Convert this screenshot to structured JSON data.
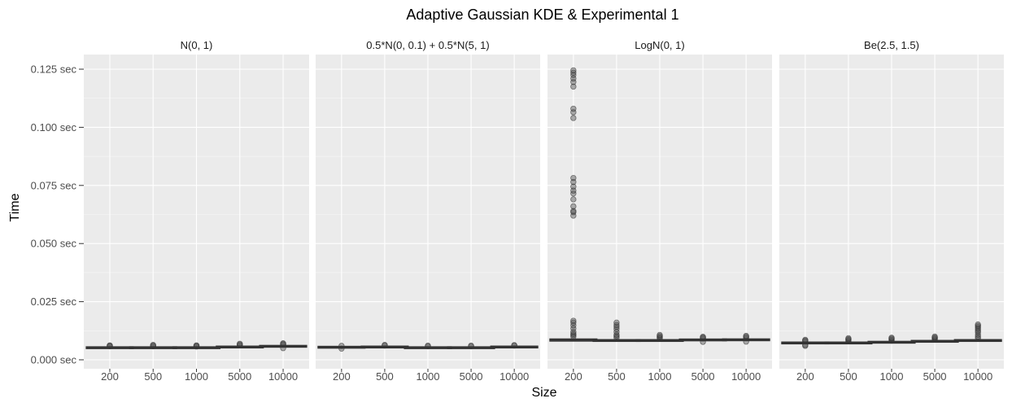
{
  "chart_data": {
    "type": "box",
    "title": "Adaptive Gaussian KDE & Experimental 1",
    "xlabel": "Size",
    "ylabel": "Time",
    "categories": [
      "200",
      "500",
      "1000",
      "5000",
      "10000"
    ],
    "ylim": [
      0,
      0.13
    ],
    "yticks": [
      0,
      0.025,
      0.05,
      0.075,
      0.1,
      0.125
    ],
    "ytick_labels": [
      "0.000 sec",
      "0.025 sec",
      "0.050 sec",
      "0.075 sec",
      "0.100 sec",
      "0.125 sec"
    ],
    "grid": true,
    "facets": [
      {
        "label": "N(0, 1)",
        "boxes": [
          {
            "category": "200",
            "q1": 0.005,
            "median": 0.0052,
            "q3": 0.0054,
            "outliers": [
              0.0058,
              0.006,
              0.0062
            ]
          },
          {
            "category": "500",
            "q1": 0.005,
            "median": 0.0052,
            "q3": 0.0054,
            "outliers": [
              0.0058,
              0.0061,
              0.0064
            ]
          },
          {
            "category": "1000",
            "q1": 0.005,
            "median": 0.0052,
            "q3": 0.0054,
            "outliers": [
              0.0057,
              0.006,
              0.0062
            ]
          },
          {
            "category": "5000",
            "q1": 0.0053,
            "median": 0.0055,
            "q3": 0.0057,
            "outliers": [
              0.0062,
              0.0066,
              0.0069
            ]
          },
          {
            "category": "10000",
            "q1": 0.0056,
            "median": 0.0058,
            "q3": 0.006,
            "outliers": [
              0.005,
              0.0065,
              0.0068,
              0.0071
            ]
          }
        ]
      },
      {
        "label": "0.5*N(0, 0.1) + 0.5*N(5, 1)",
        "boxes": [
          {
            "category": "200",
            "q1": 0.0052,
            "median": 0.0054,
            "q3": 0.0056,
            "outliers": [
              0.0048,
              0.006
            ]
          },
          {
            "category": "500",
            "q1": 0.0053,
            "median": 0.0055,
            "q3": 0.0057,
            "outliers": [
              0.0061,
              0.0064
            ]
          },
          {
            "category": "1000",
            "q1": 0.005,
            "median": 0.0052,
            "q3": 0.0054,
            "outliers": [
              0.0058,
              0.0061
            ]
          },
          {
            "category": "5000",
            "q1": 0.005,
            "median": 0.0052,
            "q3": 0.0054,
            "outliers": [
              0.0058,
              0.0061
            ]
          },
          {
            "category": "10000",
            "q1": 0.0053,
            "median": 0.0055,
            "q3": 0.0057,
            "outliers": [
              0.0061,
              0.0063
            ]
          }
        ]
      },
      {
        "label": "LogN(0, 1)",
        "boxes": [
          {
            "category": "200",
            "q1": 0.008,
            "median": 0.0085,
            "q3": 0.009,
            "outliers": [
              0.01,
              0.0106,
              0.0112,
              0.012,
              0.0135,
              0.0148,
              0.016,
              0.0168,
              0.062,
              0.0635,
              0.064,
              0.066,
              0.069,
              0.0715,
              0.0728,
              0.0745,
              0.0765,
              0.0782,
              0.104,
              0.1065,
              0.108,
              0.1175,
              0.1195,
              0.121,
              0.1225,
              0.1235,
              0.1245
            ]
          },
          {
            "category": "500",
            "q1": 0.008,
            "median": 0.0083,
            "q3": 0.0086,
            "outliers": [
              0.0095,
              0.0102,
              0.0108,
              0.012,
              0.0132,
              0.0142,
              0.015,
              0.016
            ]
          },
          {
            "category": "1000",
            "q1": 0.008,
            "median": 0.0083,
            "q3": 0.0086,
            "outliers": [
              0.0092,
              0.0097,
              0.0102,
              0.0107
            ]
          },
          {
            "category": "5000",
            "q1": 0.0083,
            "median": 0.0085,
            "q3": 0.0088,
            "outliers": [
              0.0077,
              0.0092,
              0.0096,
              0.0099
            ]
          },
          {
            "category": "10000",
            "q1": 0.0083,
            "median": 0.0086,
            "q3": 0.0089,
            "outliers": [
              0.0078,
              0.0094,
              0.0099,
              0.0103
            ]
          }
        ]
      },
      {
        "label": "Be(2.5, 1.5)",
        "boxes": [
          {
            "category": "200",
            "q1": 0.007,
            "median": 0.0072,
            "q3": 0.0075,
            "outliers": [
              0.006,
              0.0064,
              0.0079,
              0.0083,
              0.0086
            ]
          },
          {
            "category": "500",
            "q1": 0.007,
            "median": 0.0072,
            "q3": 0.0075,
            "outliers": [
              0.008,
              0.0085,
              0.0089,
              0.0093
            ]
          },
          {
            "category": "1000",
            "q1": 0.0073,
            "median": 0.0075,
            "q3": 0.0078,
            "outliers": [
              0.0082,
              0.0087,
              0.0091,
              0.0095
            ]
          },
          {
            "category": "5000",
            "q1": 0.0077,
            "median": 0.0079,
            "q3": 0.0082,
            "outliers": [
              0.0087,
              0.0092,
              0.0096,
              0.01
            ]
          },
          {
            "category": "10000",
            "q1": 0.008,
            "median": 0.0083,
            "q3": 0.0086,
            "outliers": [
              0.0092,
              0.01,
              0.0108,
              0.0118,
              0.0125,
              0.0133,
              0.014,
              0.0146,
              0.0152
            ]
          }
        ]
      }
    ]
  },
  "colors": {
    "panel_bg": "#ebebeb",
    "grid_major": "#ffffff",
    "box_fill": "#ffffff",
    "box_line": "#333333",
    "outlier_fill": "#4d4d4d",
    "log_box_fill": "#c78fa0"
  }
}
